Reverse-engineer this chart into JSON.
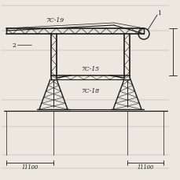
{
  "bg_color": "#ede8df",
  "line_color": "#1a1a1a",
  "dim_color": "#1a1a1a",
  "light_line_color": "#aaaaaa",
  "label_7c19": "7C-19",
  "label_7c15": "7C-15",
  "label_7c18": "7C-18",
  "label_2": "2",
  "label_1": "1",
  "label_dim1": "11100",
  "label_dim2": "11100",
  "figsize": [
    2.3,
    2.3
  ],
  "dpi": 100
}
